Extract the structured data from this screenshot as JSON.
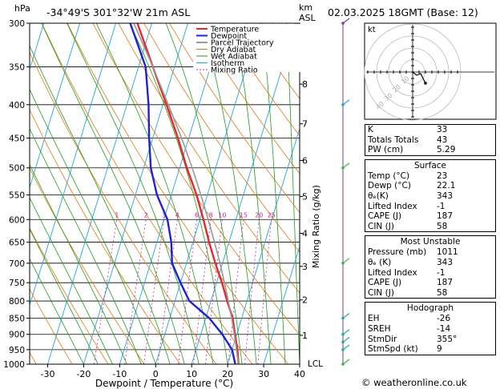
{
  "header": {
    "hpa_label": "hPa",
    "location": "-34°49'S  301°32'W  21m  ASL",
    "km_label": "km",
    "asl_label": "ASL",
    "datetime": "02.03.2025  18GMT  (Base: 12)"
  },
  "chart_data": {
    "type": "line",
    "title": "",
    "xlabel": "Dewpoint / Temperature (°C)",
    "ylabel": "Mixing Ratio (g/kg)",
    "xlim": [
      -35,
      40
    ],
    "ylim": [
      1000,
      300
    ],
    "log_scale_y": true,
    "pressure_ticks": [
      300,
      350,
      400,
      450,
      500,
      550,
      600,
      650,
      700,
      750,
      800,
      850,
      900,
      950,
      1000
    ],
    "temp_ticks": [
      -30,
      -20,
      -10,
      0,
      10,
      20,
      30,
      40
    ],
    "km_ticks": [
      {
        "km": "1",
        "p": 903
      },
      {
        "km": "2",
        "p": 797
      },
      {
        "km": "3",
        "p": 708
      },
      {
        "km": "4",
        "p": 630
      },
      {
        "km": "5",
        "p": 553
      },
      {
        "km": "6",
        "p": 487
      },
      {
        "km": "7",
        "p": 428
      },
      {
        "km": "8",
        "p": 372
      }
    ],
    "lcl_label": "LCL",
    "mixing_ratio_labels": [
      "1",
      "2",
      "3",
      "4",
      "6",
      "8",
      "10",
      "15",
      "20",
      "25"
    ],
    "legend": [
      "Temperature",
      "Dewpoint",
      "Parcel Trajectory",
      "Dry Adiabat",
      "Wet Adiabat",
      "Isotherm",
      "Mixing Ratio"
    ],
    "series": [
      {
        "name": "Temperature",
        "color": "#e8282a",
        "points": [
          [
            1000,
            23
          ],
          [
            950,
            21.5
          ],
          [
            900,
            19.5
          ],
          [
            850,
            17.5
          ],
          [
            800,
            14.5
          ],
          [
            750,
            11.5
          ],
          [
            700,
            8
          ],
          [
            650,
            4.5
          ],
          [
            600,
            1
          ],
          [
            550,
            -3
          ],
          [
            500,
            -8
          ],
          [
            450,
            -13
          ],
          [
            400,
            -19
          ],
          [
            350,
            -26
          ],
          [
            300,
            -34
          ]
        ]
      },
      {
        "name": "Dewpoint",
        "color": "#2020d8",
        "points": [
          [
            1000,
            22.1
          ],
          [
            950,
            20
          ],
          [
            900,
            16
          ],
          [
            850,
            11
          ],
          [
            800,
            4
          ],
          [
            750,
            0
          ],
          [
            700,
            -4
          ],
          [
            650,
            -6
          ],
          [
            600,
            -9
          ],
          [
            550,
            -14
          ],
          [
            500,
            -18
          ],
          [
            450,
            -21
          ],
          [
            400,
            -24
          ],
          [
            350,
            -28
          ],
          [
            300,
            -36
          ]
        ]
      },
      {
        "name": "Parcel Trajectory",
        "color": "#999999",
        "points": [
          [
            1000,
            23
          ],
          [
            950,
            21.2
          ],
          [
            900,
            19.3
          ],
          [
            850,
            17.2
          ],
          [
            800,
            14.8
          ],
          [
            750,
            12.2
          ],
          [
            700,
            9.3
          ],
          [
            650,
            6
          ],
          [
            600,
            2.3
          ],
          [
            550,
            -1.8
          ],
          [
            500,
            -6.5
          ],
          [
            450,
            -12
          ],
          [
            400,
            -18.5
          ],
          [
            350,
            -26
          ],
          [
            300,
            -35
          ]
        ]
      }
    ]
  },
  "hodograph": {
    "label": "kt",
    "ring_labels": [
      "10",
      "20",
      "30",
      "40"
    ]
  },
  "indices": {
    "rows": [
      {
        "k": "K",
        "v": "33"
      },
      {
        "k": "Totals Totals",
        "v": "43"
      },
      {
        "k": "PW (cm)",
        "v": "5.29"
      }
    ],
    "surface": {
      "title": "Surface",
      "rows": [
        {
          "k": "Temp (°C)",
          "v": "23"
        },
        {
          "k": "Dewp (°C)",
          "v": "22.1"
        },
        {
          "k": "θₑ(K)",
          "v": "343"
        },
        {
          "k": "Lifted Index",
          "v": "-1"
        },
        {
          "k": "CAPE (J)",
          "v": "187"
        },
        {
          "k": "CIN (J)",
          "v": "58"
        }
      ]
    },
    "most_unstable": {
      "title": "Most Unstable",
      "rows": [
        {
          "k": "Pressure (mb)",
          "v": "1011"
        },
        {
          "k": "θₑ (K)",
          "v": "343"
        },
        {
          "k": "Lifted Index",
          "v": "-1"
        },
        {
          "k": "CAPE (J)",
          "v": "187"
        },
        {
          "k": "CIN (J)",
          "v": "58"
        }
      ]
    },
    "hodograph_block": {
      "title": "Hodograph",
      "rows": [
        {
          "k": "EH",
          "v": "-26"
        },
        {
          "k": "SREH",
          "v": "-14"
        },
        {
          "k": "StmDir",
          "v": "355°"
        },
        {
          "k": "StmSpd (kt)",
          "v": "9"
        }
      ]
    }
  },
  "credit": "© weatheronline.co.uk",
  "colors": {
    "temperature": "#e8282a",
    "dewpoint": "#2020d8",
    "parcel": "#999999",
    "dry_adiabat": "#e07a10",
    "wet_adiabat": "#1e9e1e",
    "isotherm": "#22a6e0",
    "mixing_ratio": "#d020a0"
  }
}
